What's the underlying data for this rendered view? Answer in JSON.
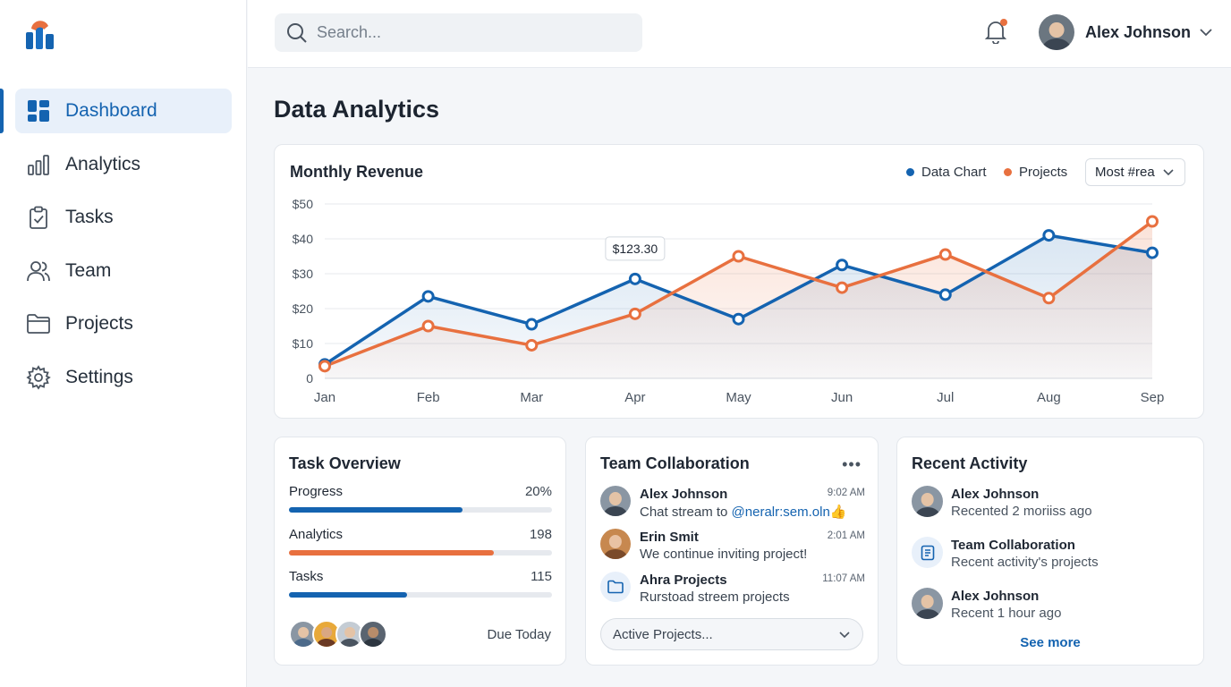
{
  "app": {
    "logo_icon": "bar-chart-logo-icon"
  },
  "sidebar": {
    "items": [
      {
        "label": "Dashboard",
        "icon": "dashboard-icon",
        "active": true
      },
      {
        "label": "Analytics",
        "icon": "analytics-icon",
        "active": false
      },
      {
        "label": "Tasks",
        "icon": "clipboard-check-icon",
        "active": false
      },
      {
        "label": "Team",
        "icon": "users-icon",
        "active": false
      },
      {
        "label": "Projects",
        "icon": "folder-icon",
        "active": false
      },
      {
        "label": "Settings",
        "icon": "gear-icon",
        "active": false
      }
    ]
  },
  "topbar": {
    "search_placeholder": "Search...",
    "notification_icon": "bell-icon",
    "user_name": "Alex Johnson"
  },
  "page": {
    "title": "Data Analytics"
  },
  "revenue": {
    "title": "Monthly Revenue",
    "legend": [
      {
        "label": "Data Chart",
        "color": "#1463b0"
      },
      {
        "label": "Projects",
        "color": "#e8703f"
      }
    ],
    "dropdown_label": "Most #rea",
    "tooltip": "$123.30"
  },
  "chart_data": {
    "type": "line",
    "categories": [
      "Jan",
      "Feb",
      "Mar",
      "Apr",
      "May",
      "Jun",
      "Jul",
      "Aug",
      "Sep"
    ],
    "series": [
      {
        "name": "Data Chart",
        "color": "#1463b0",
        "values": [
          4,
          23.5,
          15.5,
          28.5,
          17,
          32.5,
          24,
          41,
          36
        ]
      },
      {
        "name": "Projects",
        "color": "#e8703f",
        "values": [
          3.5,
          15,
          9.5,
          18.5,
          35,
          26,
          35.5,
          23,
          45
        ]
      }
    ],
    "y_ticks": [
      "0",
      "$10",
      "$20",
      "$30",
      "$40",
      "$50"
    ],
    "ylim": [
      0,
      50
    ],
    "grid": true,
    "legend_position": "top-right"
  },
  "task_overview": {
    "title": "Task Overview",
    "bars": [
      {
        "label": "Progress",
        "value_text": "20%",
        "fraction": 0.66,
        "color": "#1463b0"
      },
      {
        "label": "Analytics",
        "value_text": "198",
        "fraction": 0.78,
        "color": "#e8703f"
      },
      {
        "label": "Tasks",
        "value_text": "115",
        "fraction": 0.45,
        "color": "#1463b0"
      }
    ],
    "due_label": "Due Today"
  },
  "team_collab": {
    "title": "Team Collaboration",
    "more_icon": "more-horizontal-icon",
    "messages": [
      {
        "name": "Alex Johnson",
        "text_before": "Chat stream to ",
        "mention": "@neralr:sem.oln",
        "emoji": "👍",
        "time": "9:02 AM"
      },
      {
        "name": "Erin Smit",
        "text": "We continue inviting project!",
        "time": "2:01 AM"
      },
      {
        "name": "Ahra Projects",
        "text": "Rurstoad streem projects",
        "time": "11:07 AM"
      }
    ],
    "select_label": "Active Projects..."
  },
  "recent_activity": {
    "title": "Recent Activity",
    "items": [
      {
        "name": "Alex Johnson",
        "text": "Recented 2 moriiss ago"
      },
      {
        "name": "Team Collaboration",
        "text": "Recent activity's projects"
      },
      {
        "name": "Alex Johnson",
        "text": "Recent 1 hour ago"
      }
    ],
    "see_more": "See more"
  }
}
